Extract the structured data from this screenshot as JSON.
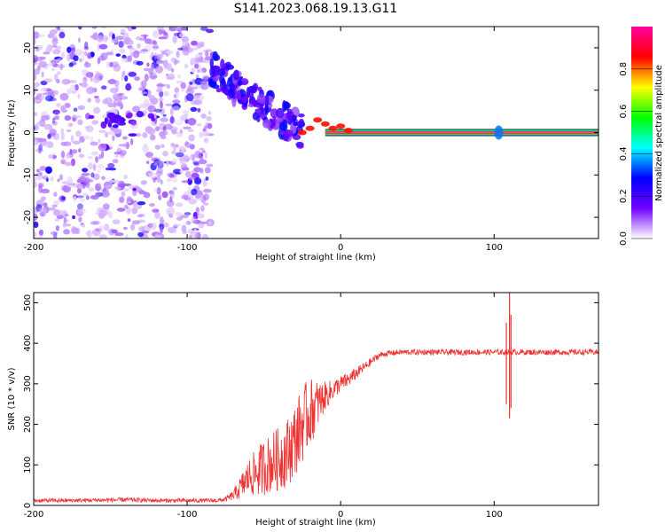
{
  "title": "S141.2023.068.19.13.G11",
  "chart_data": [
    {
      "type": "heatmap",
      "name": "spectrogram",
      "xlabel": "Height of straight line (km)",
      "ylabel": "Frequency (Hz)",
      "xlim": [
        -200,
        168
      ],
      "ylim": [
        -25,
        25
      ],
      "xticks": [
        -200,
        -100,
        0,
        100
      ],
      "xtick_labels": [
        "-200",
        "-100",
        "0",
        "100"
      ],
      "yticks": [
        -20,
        -10,
        0,
        10,
        20
      ],
      "ytick_labels": [
        "-20",
        "-10",
        "0",
        "10",
        "20"
      ],
      "colorbar": {
        "label": "Normalized spectral amplitude",
        "range": [
          0,
          1
        ],
        "ticks": [
          0.0,
          0.2,
          0.4,
          0.6,
          0.8
        ],
        "tick_labels": [
          "0.0",
          "0.2",
          "0.4",
          "0.6",
          "0.8"
        ],
        "colormap": [
          "#ffffff",
          "#7000ff",
          "#0000ff",
          "#00ffff",
          "#00ff00",
          "#ffff00",
          "#ff0000",
          "#ff00a0"
        ]
      },
      "features": [
        {
          "label": "diffuse noise speckle",
          "x_range": [
            -200,
            -85
          ],
          "freq_range": [
            -25,
            25
          ],
          "amplitude": 0.1
        },
        {
          "label": "descending streak",
          "x_range": [
            -85,
            -25
          ],
          "freq_range": [
            15,
            0
          ],
          "amplitude": 0.3
        },
        {
          "label": "stable carrier line",
          "x_range": [
            -10,
            168
          ],
          "freq": 0,
          "amplitude": 0.95
        },
        {
          "label": "disturbance",
          "x": 103,
          "freq": 0,
          "amplitude": 0.4
        }
      ]
    },
    {
      "type": "line",
      "name": "snr",
      "xlabel": "Height of straight line (km)",
      "ylabel": "SNR (10 * v/v)",
      "xlim": [
        -200,
        168
      ],
      "ylim": [
        0,
        525
      ],
      "xticks": [
        -200,
        -100,
        0,
        100
      ],
      "xtick_labels": [
        "-200",
        "-100",
        "0",
        "100"
      ],
      "yticks": [
        0,
        100,
        200,
        300,
        400,
        500
      ],
      "ytick_labels": [
        "0",
        "100",
        "200",
        "300",
        "400",
        "500"
      ],
      "series": [
        {
          "name": "SNR",
          "color": "#ee3333",
          "x": [
            -200,
            -180,
            -160,
            -140,
            -120,
            -100,
            -90,
            -80,
            -75,
            -70,
            -65,
            -60,
            -55,
            -50,
            -45,
            -40,
            -35,
            -30,
            -25,
            -20,
            -15,
            -10,
            -5,
            0,
            5,
            10,
            15,
            20,
            25,
            30,
            40,
            60,
            80,
            100,
            108,
            110,
            112,
            120,
            140,
            168
          ],
          "values": [
            12,
            12,
            13,
            14,
            12,
            12,
            12,
            12,
            15,
            25,
            45,
            70,
            80,
            95,
            105,
            115,
            130,
            160,
            200,
            230,
            250,
            270,
            285,
            300,
            310,
            325,
            340,
            355,
            370,
            375,
            378,
            378,
            378,
            378,
            378,
            378,
            378,
            378,
            378,
            378
          ],
          "noise": [
            5,
            5,
            5,
            6,
            5,
            5,
            5,
            5,
            6,
            12,
            30,
            45,
            60,
            70,
            75,
            80,
            85,
            90,
            95,
            85,
            60,
            35,
            25,
            20,
            18,
            15,
            12,
            10,
            8,
            7,
            7,
            7,
            7,
            7,
            7,
            7,
            7,
            7,
            7,
            7
          ]
        }
      ],
      "spikes": [
        {
          "x": 108,
          "min": 250,
          "max": 450
        },
        {
          "x": 110,
          "min": 215,
          "max": 525
        },
        {
          "x": 111,
          "min": 240,
          "max": 470
        }
      ]
    }
  ]
}
